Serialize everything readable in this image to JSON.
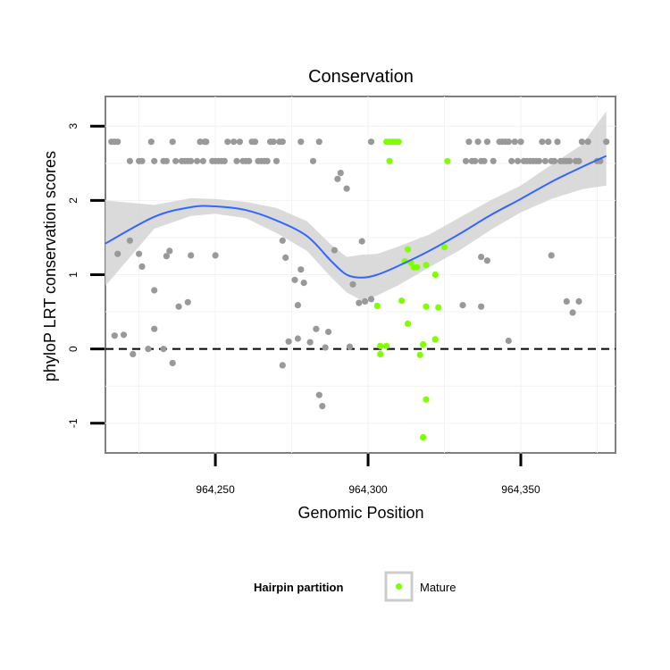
{
  "chart_data": {
    "type": "scatter",
    "title": "Conservation",
    "xlabel": "Genomic Position",
    "ylabel": "phyloP LRT conservation scores",
    "xlim": [
      964214,
      964381
    ],
    "ylim": [
      -1.4,
      3.4
    ],
    "x_ticks": [
      {
        "value": 964250,
        "label": "964,250"
      },
      {
        "value": 964300,
        "label": "964,300"
      },
      {
        "value": 964350,
        "label": "964,350"
      }
    ],
    "y_ticks": [
      {
        "value": -1,
        "label": "-1"
      },
      {
        "value": 0,
        "label": "0"
      },
      {
        "value": 1,
        "label": "1"
      },
      {
        "value": 2,
        "label": "2"
      },
      {
        "value": 3,
        "label": "3"
      }
    ],
    "reference_line": {
      "y": 0,
      "style": "dashed"
    },
    "legend": {
      "title": "Hairpin partition",
      "entries": [
        {
          "label": "Mature",
          "color": "#7fff00"
        }
      ]
    },
    "colors": {
      "other": "#999999",
      "mature": "#7fff00",
      "smooth": "#3366ff",
      "band": "#d3d3d3"
    },
    "series": [
      {
        "name": "Other",
        "points": [
          [
            964216,
            2.79
          ],
          [
            964217,
            2.79
          ],
          [
            964218,
            2.79
          ],
          [
            964222,
            2.53
          ],
          [
            964225,
            2.53
          ],
          [
            964226,
            2.53
          ],
          [
            964229,
            2.79
          ],
          [
            964230,
            2.53
          ],
          [
            964233,
            2.53
          ],
          [
            964234,
            2.53
          ],
          [
            964236,
            2.79
          ],
          [
            964237,
            2.53
          ],
          [
            964239,
            2.53
          ],
          [
            964240,
            2.53
          ],
          [
            964241,
            2.53
          ],
          [
            964242,
            2.53
          ],
          [
            964244,
            2.53
          ],
          [
            964245,
            2.79
          ],
          [
            964246,
            2.53
          ],
          [
            964246.5,
            2.79
          ],
          [
            964247,
            2.79
          ],
          [
            964249,
            2.53
          ],
          [
            964250,
            2.53
          ],
          [
            964251,
            2.53
          ],
          [
            964252,
            2.53
          ],
          [
            964253,
            2.53
          ],
          [
            964254,
            2.79
          ],
          [
            964256,
            2.79
          ],
          [
            964257,
            2.53
          ],
          [
            964258,
            2.79
          ],
          [
            964259,
            2.53
          ],
          [
            964260,
            2.53
          ],
          [
            964261,
            2.53
          ],
          [
            964262,
            2.79
          ],
          [
            964263,
            2.79
          ],
          [
            964264,
            2.53
          ],
          [
            964265,
            2.53
          ],
          [
            964266,
            2.53
          ],
          [
            964267,
            2.53
          ],
          [
            964268,
            2.79
          ],
          [
            964269,
            2.79
          ],
          [
            964270,
            2.53
          ],
          [
            964271,
            2.79
          ],
          [
            964272,
            2.79
          ],
          [
            964278,
            2.79
          ],
          [
            964282,
            2.53
          ],
          [
            964284,
            2.79
          ],
          [
            964301,
            2.79
          ],
          [
            964332,
            2.53
          ],
          [
            964333,
            2.79
          ],
          [
            964334,
            2.53
          ],
          [
            964335,
            2.53
          ],
          [
            964336,
            2.79
          ],
          [
            964337,
            2.53
          ],
          [
            964338,
            2.53
          ],
          [
            964339,
            2.79
          ],
          [
            964341,
            2.53
          ],
          [
            964343,
            2.79
          ],
          [
            964344,
            2.79
          ],
          [
            964345,
            2.79
          ],
          [
            964346,
            2.79
          ],
          [
            964347,
            2.53
          ],
          [
            964348,
            2.79
          ],
          [
            964349,
            2.53
          ],
          [
            964350,
            2.79
          ],
          [
            964351,
            2.53
          ],
          [
            964352,
            2.53
          ],
          [
            964353,
            2.53
          ],
          [
            964354,
            2.53
          ],
          [
            964355,
            2.53
          ],
          [
            964356,
            2.53
          ],
          [
            964357,
            2.79
          ],
          [
            964358,
            2.53
          ],
          [
            964359,
            2.79
          ],
          [
            964360,
            2.53
          ],
          [
            964361,
            2.53
          ],
          [
            964362,
            2.79
          ],
          [
            964363,
            2.53
          ],
          [
            964364,
            2.53
          ],
          [
            964365,
            2.53
          ],
          [
            964366,
            2.53
          ],
          [
            964368,
            2.53
          ],
          [
            964369,
            2.53
          ],
          [
            964370,
            2.79
          ],
          [
            964372,
            2.79
          ],
          [
            964375,
            2.53
          ],
          [
            964376,
            2.53
          ],
          [
            964378,
            2.79
          ],
          [
            964222,
            1.46
          ],
          [
            964218,
            1.28
          ],
          [
            964225,
            1.28
          ],
          [
            964226,
            1.11
          ],
          [
            964230,
            0.79
          ],
          [
            964234,
            1.25
          ],
          [
            964235,
            1.32
          ],
          [
            964238,
            0.57
          ],
          [
            964241,
            0.63
          ],
          [
            964242,
            1.26
          ],
          [
            964250,
            1.26
          ],
          [
            964272,
            1.46
          ],
          [
            964273,
            1.23
          ],
          [
            964276,
            0.93
          ],
          [
            964278,
            1.07
          ],
          [
            964279,
            0.89
          ],
          [
            964277,
            0.59
          ],
          [
            964289,
            1.33
          ],
          [
            964290,
            2.29
          ],
          [
            964291,
            2.37
          ],
          [
            964293,
            2.16
          ],
          [
            964295,
            0.87
          ],
          [
            964297,
            0.62
          ],
          [
            964298,
            1.45
          ],
          [
            964299,
            0.64
          ],
          [
            964301,
            0.67
          ],
          [
            964331,
            0.59
          ],
          [
            964337,
            1.24
          ],
          [
            964339,
            1.19
          ],
          [
            964337,
            0.57
          ],
          [
            964360,
            1.26
          ],
          [
            964365,
            0.64
          ],
          [
            964367,
            0.49
          ],
          [
            964369,
            0.64
          ],
          [
            964217,
            0.18
          ],
          [
            964220,
            0.19
          ],
          [
            964223,
            -0.07
          ],
          [
            964228,
            0.0
          ],
          [
            964230,
            0.27
          ],
          [
            964233,
            0.0
          ],
          [
            964236,
            -0.19
          ],
          [
            964272,
            -0.22
          ],
          [
            964274,
            0.1
          ],
          [
            964277,
            0.14
          ],
          [
            964281,
            0.09
          ],
          [
            964283,
            0.27
          ],
          [
            964286,
            0.02
          ],
          [
            964284,
            -0.62
          ],
          [
            964285,
            -0.77
          ],
          [
            964287,
            0.23
          ],
          [
            964294,
            0.03
          ],
          [
            964346,
            0.11
          ]
        ]
      },
      {
        "name": "Mature",
        "points": [
          [
            964306,
            2.79
          ],
          [
            964307,
            2.79
          ],
          [
            964308,
            2.79
          ],
          [
            964309,
            2.79
          ],
          [
            964310,
            2.79
          ],
          [
            964307,
            2.53
          ],
          [
            964326,
            2.53
          ],
          [
            964312,
            1.18
          ],
          [
            964313,
            1.34
          ],
          [
            964314,
            1.16
          ],
          [
            964315,
            1.1
          ],
          [
            964316,
            1.1
          ],
          [
            964319,
            1.13
          ],
          [
            964322,
            1.0
          ],
          [
            964325,
            1.37
          ],
          [
            964311,
            0.65
          ],
          [
            964319,
            0.57
          ],
          [
            964323,
            0.56
          ],
          [
            964303,
            0.58
          ],
          [
            964313,
            0.34
          ],
          [
            964304,
            0.04
          ],
          [
            964306,
            0.04
          ],
          [
            964317,
            -0.08
          ],
          [
            964318,
            0.06
          ],
          [
            964322,
            0.13
          ],
          [
            964304,
            -0.07
          ],
          [
            964319,
            -0.68
          ],
          [
            964318,
            -1.19
          ]
        ]
      }
    ],
    "smooth": {
      "x": [
        964214,
        964230,
        964242,
        964250,
        964260,
        964270,
        964280,
        964288,
        964293,
        964298,
        964303,
        964310,
        964320,
        964330,
        964340,
        964350,
        964360,
        964370,
        964378
      ],
      "y": [
        1.42,
        1.78,
        1.91,
        1.92,
        1.87,
        1.73,
        1.52,
        1.18,
        1.0,
        0.96,
        1.0,
        1.12,
        1.32,
        1.55,
        1.8,
        2.02,
        2.25,
        2.45,
        2.6
      ],
      "lower": [
        0.85,
        1.62,
        1.79,
        1.82,
        1.76,
        1.56,
        1.32,
        0.96,
        0.76,
        0.65,
        0.72,
        0.86,
        1.1,
        1.33,
        1.6,
        1.84,
        2.02,
        2.15,
        2.2
      ],
      "upper": [
        2.0,
        1.94,
        2.03,
        2.02,
        1.98,
        1.9,
        1.72,
        1.4,
        1.24,
        1.27,
        1.28,
        1.38,
        1.54,
        1.77,
        2.0,
        2.2,
        2.48,
        2.75,
        3.2
      ]
    }
  }
}
